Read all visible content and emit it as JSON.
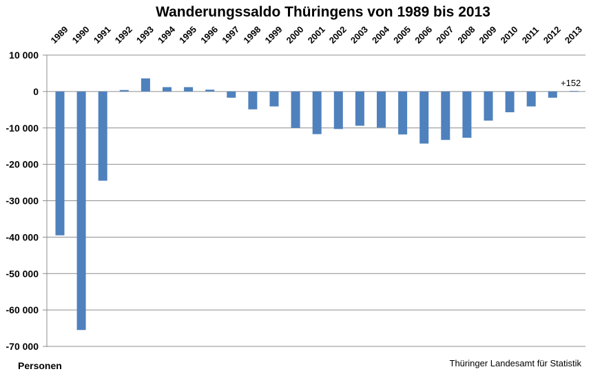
{
  "chart_data": {
    "type": "bar",
    "title": "Wanderungssaldo Thüringens von 1989 bis 2013",
    "ylabel": "Personen",
    "source": "Thüringer Landesamt für Statistik",
    "categories": [
      "1989",
      "1990",
      "1991",
      "1992",
      "1993",
      "1994",
      "1995",
      "1996",
      "1997",
      "1998",
      "1999",
      "2000",
      "2001",
      "2002",
      "2003",
      "2004",
      "2005",
      "2006",
      "2007",
      "2008",
      "2009",
      "2010",
      "2011",
      "2012",
      "2013"
    ],
    "values": [
      -39500,
      -65500,
      -24500,
      400,
      3600,
      1200,
      1200,
      500,
      -1700,
      -4900,
      -4100,
      -10000,
      -11700,
      -10300,
      -9400,
      -9900,
      -11800,
      -14300,
      -13300,
      -12700,
      -8000,
      -5700,
      -4100,
      -1700,
      152
    ],
    "ylim": [
      -70000,
      10000
    ],
    "yticks": [
      10000,
      0,
      -10000,
      -20000,
      -30000,
      -40000,
      -50000,
      -60000,
      -70000
    ],
    "ytick_labels": [
      "10 000",
      "0",
      "-10 000",
      "-20 000",
      "-30 000",
      "-40 000",
      "-50 000",
      "-60 000",
      "-70 000"
    ],
    "annotation": "+152",
    "grid": true,
    "bar_color": "#4f81bd"
  }
}
